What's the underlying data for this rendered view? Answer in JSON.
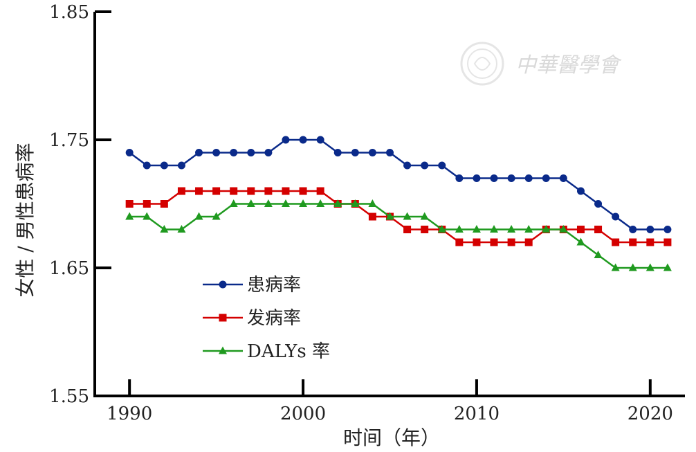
{
  "chart_data": {
    "type": "line",
    "title": "",
    "xlabel": "时间（年）",
    "ylabel": "女性 / 男性患病率",
    "xlim": [
      1988,
      2022
    ],
    "ylim": [
      1.55,
      1.85
    ],
    "x_ticks": [
      1990,
      2000,
      2010,
      2020
    ],
    "y_ticks": [
      "1.55",
      "1.65",
      "1.75",
      "1.85"
    ],
    "legend_position": "lower-left",
    "x": [
      1990,
      1991,
      1992,
      1993,
      1994,
      1995,
      1996,
      1997,
      1998,
      1999,
      2000,
      2001,
      2002,
      2003,
      2004,
      2005,
      2006,
      2007,
      2008,
      2009,
      2010,
      2011,
      2012,
      2013,
      2014,
      2015,
      2016,
      2017,
      2018,
      2019,
      2020,
      2021
    ],
    "series": [
      {
        "name": "患病率",
        "color": "#0a2a8a",
        "marker": "circle",
        "values": [
          1.74,
          1.73,
          1.73,
          1.73,
          1.74,
          1.74,
          1.74,
          1.74,
          1.74,
          1.75,
          1.75,
          1.75,
          1.74,
          1.74,
          1.74,
          1.74,
          1.73,
          1.73,
          1.73,
          1.72,
          1.72,
          1.72,
          1.72,
          1.72,
          1.72,
          1.72,
          1.71,
          1.7,
          1.69,
          1.68,
          1.68,
          1.68
        ]
      },
      {
        "name": "发病率",
        "color": "#d40000",
        "marker": "square",
        "values": [
          1.7,
          1.7,
          1.7,
          1.71,
          1.71,
          1.71,
          1.71,
          1.71,
          1.71,
          1.71,
          1.71,
          1.71,
          1.7,
          1.7,
          1.69,
          1.69,
          1.68,
          1.68,
          1.68,
          1.67,
          1.67,
          1.67,
          1.67,
          1.67,
          1.68,
          1.68,
          1.68,
          1.68,
          1.67,
          1.67,
          1.67,
          1.67
        ]
      },
      {
        "name": "DALYs 率",
        "color": "#1f9a1f",
        "marker": "triangle",
        "values": [
          1.69,
          1.69,
          1.68,
          1.68,
          1.69,
          1.69,
          1.7,
          1.7,
          1.7,
          1.7,
          1.7,
          1.7,
          1.7,
          1.7,
          1.7,
          1.69,
          1.69,
          1.69,
          1.68,
          1.68,
          1.68,
          1.68,
          1.68,
          1.68,
          1.68,
          1.68,
          1.67,
          1.66,
          1.65,
          1.65,
          1.65,
          1.65
        ]
      }
    ],
    "watermark": "中華醫學會"
  }
}
